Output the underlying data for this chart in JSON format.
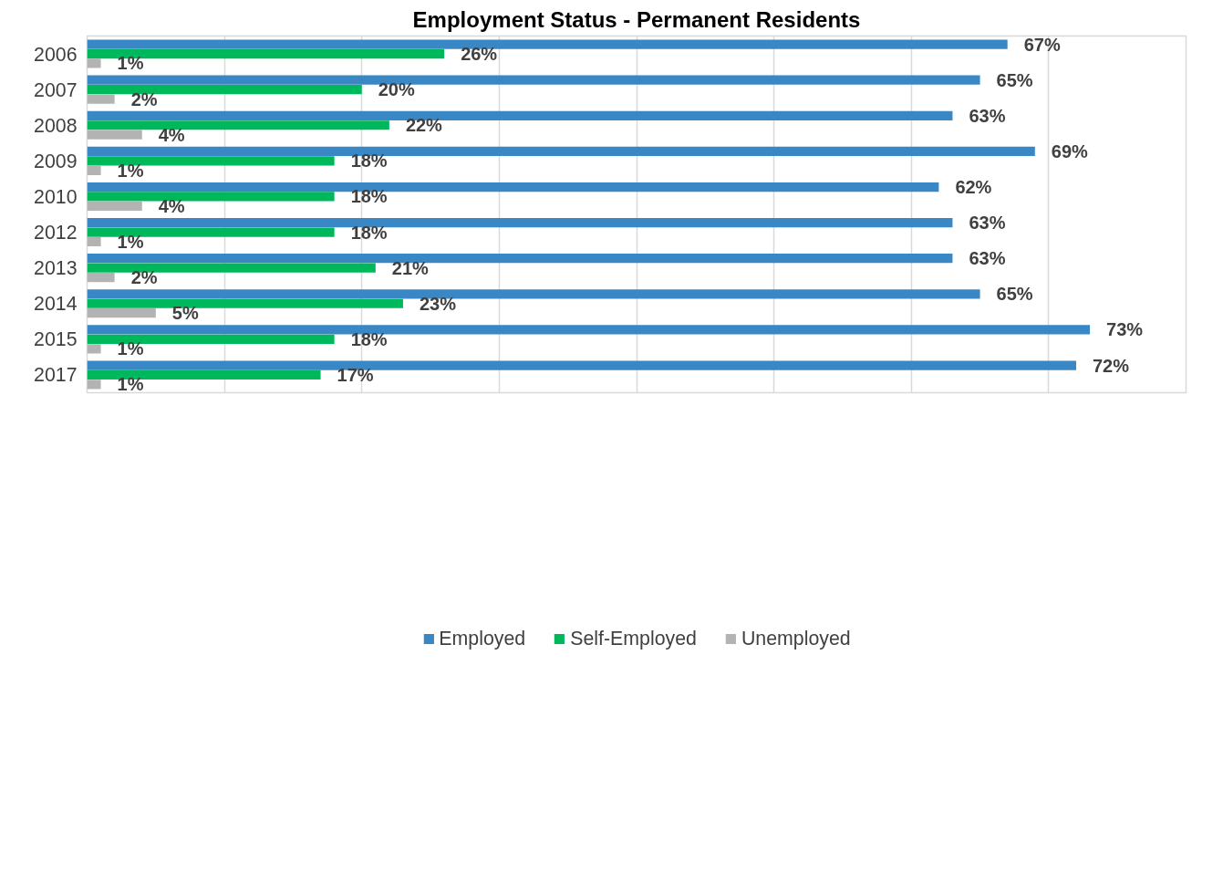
{
  "chart_data": {
    "type": "bar",
    "orientation": "horizontal",
    "title": "Employment Status - Permanent Residents",
    "categories": [
      "2006",
      "2007",
      "2008",
      "2009",
      "2010",
      "2012",
      "2013",
      "2014",
      "2015",
      "2017"
    ],
    "series": [
      {
        "name": "Employed",
        "color": "#3a87c6",
        "values": [
          67,
          65,
          63,
          69,
          62,
          63,
          63,
          65,
          73,
          72
        ],
        "value_labels": [
          "67%",
          "65%",
          "63%",
          "69%",
          "62%",
          "63%",
          "63%",
          "65%",
          "73%",
          "72%"
        ]
      },
      {
        "name": "Self-Employed",
        "color": "#00b85c",
        "values": [
          26,
          20,
          22,
          18,
          18,
          18,
          21,
          23,
          18,
          17
        ],
        "value_labels": [
          "26%",
          "20%",
          "22%",
          "18%",
          "18%",
          "18%",
          "21%",
          "23%",
          "18%",
          "17%"
        ]
      },
      {
        "name": "Unemployed",
        "color": "#b3b3b3",
        "values": [
          1,
          2,
          4,
          1,
          4,
          1,
          2,
          5,
          1,
          1
        ],
        "value_labels": [
          "1%",
          "2%",
          "4%",
          "1%",
          "4%",
          "1%",
          "2%",
          "5%",
          "1%",
          "1%"
        ]
      }
    ],
    "xlim": [
      0,
      80
    ],
    "tick_labels": "y",
    "grid": "x",
    "legend": "bottom"
  }
}
